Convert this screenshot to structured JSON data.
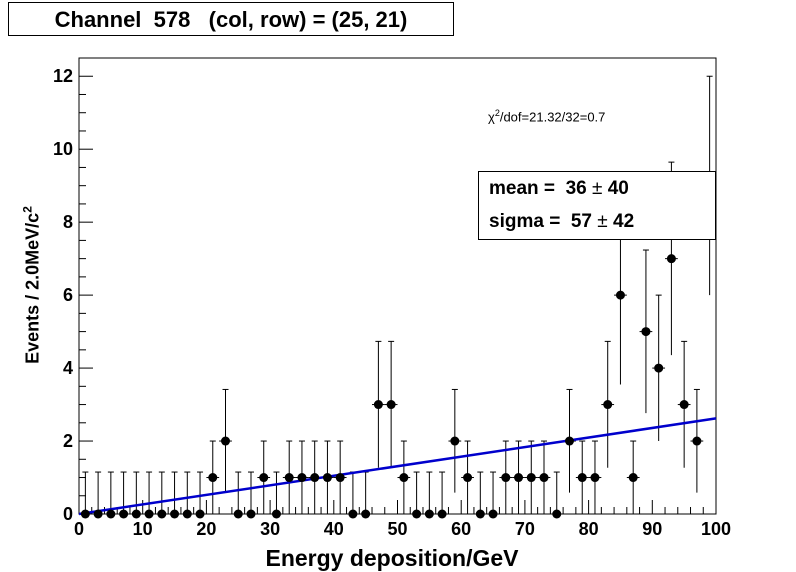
{
  "chart_data": {
    "type": "scatter",
    "title": "Channel  578   (col, row) = (25, 21)",
    "xlabel": "Energy deposition/GeV",
    "ylabel_main": "Events / 2.0MeV/c",
    "ylabel_sup": "2",
    "xlim": [
      0,
      100
    ],
    "ylim": [
      0,
      12.5
    ],
    "xticks": [
      0,
      10,
      20,
      30,
      40,
      50,
      60,
      70,
      80,
      90,
      100
    ],
    "yticks": [
      0,
      2,
      4,
      6,
      8,
      10,
      12
    ],
    "bin_width": 2,
    "series": [
      {
        "type": "points_with_errors",
        "x": [
          1,
          3,
          5,
          7,
          9,
          11,
          13,
          15,
          17,
          19,
          21,
          23,
          25,
          27,
          29,
          31,
          33,
          35,
          37,
          39,
          41,
          43,
          45,
          47,
          49,
          51,
          53,
          55,
          57,
          59,
          61,
          63,
          65,
          67,
          69,
          71,
          73,
          75,
          77,
          79,
          81,
          83,
          85,
          87,
          89,
          91,
          93,
          95,
          97,
          99
        ],
        "y": [
          0,
          0,
          0,
          0,
          0,
          0,
          0,
          0,
          0,
          0,
          1,
          2,
          0,
          0,
          1,
          0,
          1,
          1,
          1,
          1,
          1,
          0,
          0,
          3,
          3,
          1,
          0,
          0,
          0,
          2,
          1,
          0,
          0,
          1,
          1,
          1,
          1,
          0,
          2,
          1,
          1,
          3,
          6,
          1,
          5,
          4,
          7,
          3,
          2,
          9
        ]
      }
    ],
    "fit_line": {
      "x": [
        0,
        100
      ],
      "y": [
        0.0,
        2.62
      ],
      "color": "#0000cc"
    },
    "stats": {
      "mean_label": "mean = ",
      "mean_value": "36",
      "mean_error": "40",
      "sigma_label": "sigma = ",
      "sigma_value": "57",
      "sigma_error": "42"
    },
    "chi2_prefix": "χ",
    "chi2_sup": "2",
    "chi2_text": "/dof=21.32/32=0.7",
    "grid": false,
    "legend": "none"
  }
}
